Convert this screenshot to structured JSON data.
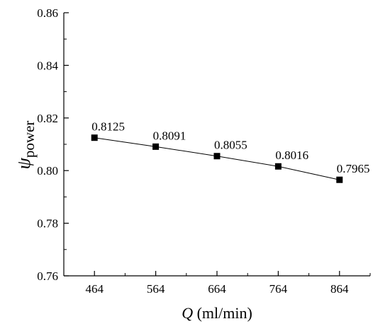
{
  "chart_data": {
    "type": "line",
    "x": [
      464,
      564,
      664,
      764,
      864
    ],
    "series": [
      {
        "values": [
          0.8125,
          0.8091,
          0.8055,
          0.8016,
          0.7965
        ]
      }
    ],
    "data_labels": [
      "0.8125",
      "0.8091",
      "0.8055",
      "0.8016",
      "0.7965"
    ],
    "xlabel": {
      "var": "Q",
      "unit": " (ml/min)"
    },
    "ylabel": {
      "var": "ψ",
      "sub": "power"
    },
    "xticks": [
      "464",
      "564",
      "664",
      "764",
      "864"
    ],
    "yticks": [
      "0.76",
      "0.78",
      "0.80",
      "0.82",
      "0.84",
      "0.86"
    ],
    "xlim": [
      414,
      914
    ],
    "ylim": [
      0.76,
      0.86
    ],
    "grid": false,
    "marker": "square",
    "colors": {
      "line": "#000000",
      "marker": "#000000"
    }
  }
}
